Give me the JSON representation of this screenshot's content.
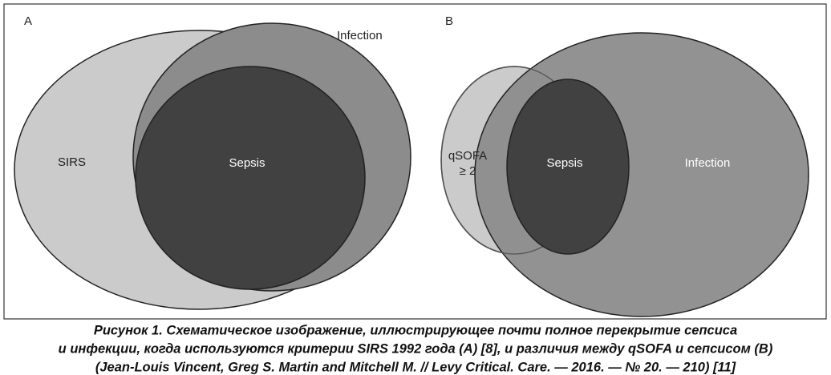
{
  "panels": [
    {
      "label": "A",
      "sets": [
        "SIRS",
        "Infection",
        "Sepsis"
      ]
    },
    {
      "label": "B",
      "sets": [
        "qSOFA",
        "≥ 2",
        "Sepsis",
        "Infection"
      ]
    }
  ],
  "caption": {
    "lines": [
      "Рисунок 1.  Схематическое изображение, иллюстрирующее почти полное перекрытие сепсиса",
      "и инфекции, когда используются критерии SIRS 1992 года (A) [8], и различия между qSOFA и сепсисом (B)",
      "(Jean-Louis Vincent, Greg S. Martin and Mitchell M. // Levy Critical. Care. — 2016. — № 20. — 210) [11]"
    ]
  }
}
